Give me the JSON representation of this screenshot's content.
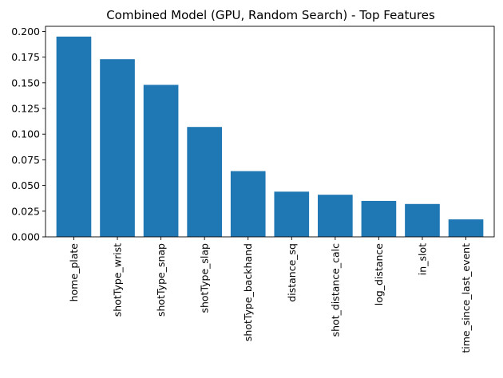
{
  "chart_data": {
    "type": "bar",
    "title": "Combined Model (GPU, Random Search) - Top Features",
    "xlabel": "",
    "ylabel": "",
    "categories": [
      "home_plate",
      "shotType_wrist",
      "shotType_snap",
      "shotType_slap",
      "shotType_backhand",
      "distance_sq",
      "shot_distance_calc",
      "log_distance",
      "in_slot",
      "time_since_last_event"
    ],
    "values": [
      0.195,
      0.173,
      0.148,
      0.107,
      0.064,
      0.044,
      0.041,
      0.035,
      0.032,
      0.017
    ],
    "ylim": [
      0,
      0.205
    ],
    "yticks": [
      0.0,
      0.025,
      0.05,
      0.075,
      0.1,
      0.125,
      0.15,
      0.175,
      0.2
    ],
    "ytick_labels": [
      "0.000",
      "0.025",
      "0.050",
      "0.075",
      "0.100",
      "0.125",
      "0.150",
      "0.175",
      "0.200"
    ],
    "bar_color": "#1f77b4",
    "grid": false,
    "legend": "none"
  }
}
